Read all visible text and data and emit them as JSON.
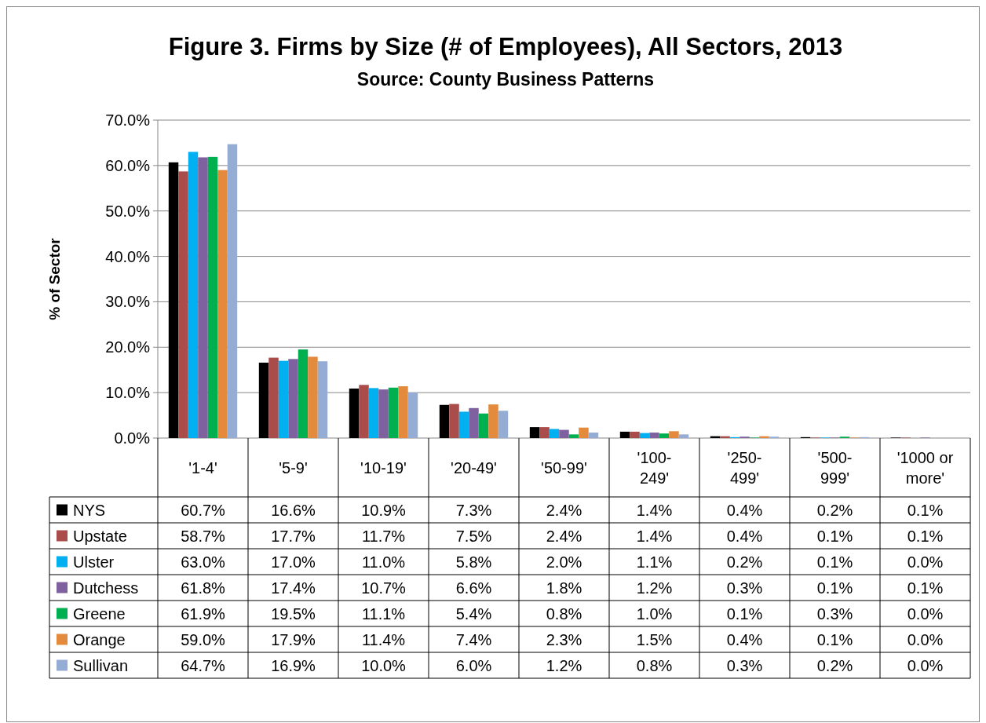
{
  "chart_data": {
    "type": "bar",
    "title": "Figure 3.  Firms by Size (# of Employees), All Sectors, 2013",
    "subtitle": "Source:  County Business Patterns",
    "ylabel": "% of Sector",
    "categories": [
      "'1-4'",
      "'5-9'",
      "'10-19'",
      "'20-49'",
      "'50-99'",
      "'100-249'",
      "'250-499'",
      "'500-999'",
      "'1000 or more'"
    ],
    "series": [
      {
        "name": "NYS",
        "color": "#000000",
        "values": [
          60.7,
          16.6,
          10.9,
          7.3,
          2.4,
          1.4,
          0.4,
          0.2,
          0.1
        ],
        "value_labels": [
          "60.7%",
          "16.6%",
          "10.9%",
          "7.3%",
          "2.4%",
          "1.4%",
          "0.4%",
          "0.2%",
          "0.1%"
        ]
      },
      {
        "name": "Upstate",
        "color": "#a94c4a",
        "values": [
          58.7,
          17.7,
          11.7,
          7.5,
          2.4,
          1.4,
          0.4,
          0.1,
          0.1
        ],
        "value_labels": [
          "58.7%",
          "17.7%",
          "11.7%",
          "7.5%",
          "2.4%",
          "1.4%",
          "0.4%",
          "0.1%",
          "0.1%"
        ]
      },
      {
        "name": "Ulster",
        "color": "#00b0f0",
        "values": [
          63.0,
          17.0,
          11.0,
          5.8,
          2.0,
          1.1,
          0.2,
          0.1,
          0.0
        ],
        "value_labels": [
          "63.0%",
          "17.0%",
          "11.0%",
          "5.8%",
          "2.0%",
          "1.1%",
          "0.2%",
          "0.1%",
          "0.0%"
        ]
      },
      {
        "name": "Dutchess",
        "color": "#7f61a0",
        "values": [
          61.8,
          17.4,
          10.7,
          6.6,
          1.8,
          1.2,
          0.3,
          0.1,
          0.1
        ],
        "value_labels": [
          "61.8%",
          "17.4%",
          "10.7%",
          "6.6%",
          "1.8%",
          "1.2%",
          "0.3%",
          "0.1%",
          "0.1%"
        ]
      },
      {
        "name": "Greene",
        "color": "#00b050",
        "values": [
          61.9,
          19.5,
          11.1,
          5.4,
          0.8,
          1.0,
          0.1,
          0.3,
          0.0
        ],
        "value_labels": [
          "61.9%",
          "19.5%",
          "11.1%",
          "5.4%",
          "0.8%",
          "1.0%",
          "0.1%",
          "0.3%",
          "0.0%"
        ]
      },
      {
        "name": "Orange",
        "color": "#e38a3c",
        "values": [
          59.0,
          17.9,
          11.4,
          7.4,
          2.3,
          1.5,
          0.4,
          0.1,
          0.0
        ],
        "value_labels": [
          "59.0%",
          "17.9%",
          "11.4%",
          "7.4%",
          "2.3%",
          "1.5%",
          "0.4%",
          "0.1%",
          "0.0%"
        ]
      },
      {
        "name": "Sullivan",
        "color": "#95acd4",
        "values": [
          64.7,
          16.9,
          10.0,
          6.0,
          1.2,
          0.8,
          0.3,
          0.2,
          0.0
        ],
        "value_labels": [
          "64.7%",
          "16.9%",
          "10.0%",
          "6.0%",
          "1.2%",
          "0.8%",
          "0.3%",
          "0.2%",
          "0.0%"
        ]
      }
    ],
    "ylim": [
      0,
      70
    ],
    "yticks": [
      {
        "value": 0,
        "label": "0.0%"
      },
      {
        "value": 10,
        "label": "10.0%"
      },
      {
        "value": 20,
        "label": "20.0%"
      },
      {
        "value": 30,
        "label": "30.0%"
      },
      {
        "value": 40,
        "label": "40.0%"
      },
      {
        "value": 50,
        "label": "50.0%"
      },
      {
        "value": 60,
        "label": "60.0%"
      },
      {
        "value": 70,
        "label": "70.0%"
      }
    ],
    "grid": "y",
    "legend": "bottom"
  }
}
